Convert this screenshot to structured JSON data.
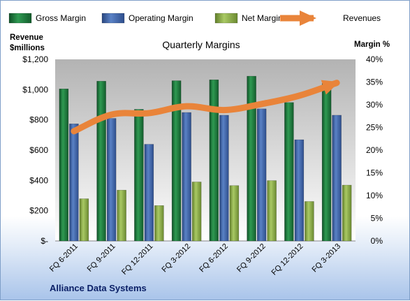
{
  "chart_data": {
    "type": "bar",
    "title": "Quarterly Margins",
    "footer": "Alliance Data Systems",
    "left_axis_title": [
      "Revenue",
      "$millions"
    ],
    "right_axis_title": "Margin %",
    "left_ticks": [
      "$-",
      "$200",
      "$400",
      "$600",
      "$800",
      "$1,000",
      "$1,200"
    ],
    "right_ticks": [
      "0%",
      "5%",
      "10%",
      "15%",
      "20%",
      "25%",
      "30%",
      "35%",
      "40%"
    ],
    "ylim_left": [
      0,
      1200
    ],
    "ylim_right": [
      0,
      40
    ],
    "legend_position": "top",
    "grid": false,
    "categories": [
      "FQ 6-2011",
      "FQ 9-2011",
      "FQ 12-2011",
      "FQ 3-2012",
      "FQ 6-2012",
      "FQ 9-2012",
      "FQ 12-2012",
      "FQ 3-2013"
    ],
    "series": [
      {
        "name": "Gross Margin",
        "axis": "right",
        "color": "#1f7a3d",
        "values": [
          33.5,
          35.2,
          29.0,
          35.3,
          35.5,
          36.3,
          30.5,
          34.7
        ]
      },
      {
        "name": "Operating Margin",
        "axis": "right",
        "color": "#3f64a8",
        "values": [
          25.8,
          27.0,
          21.3,
          28.3,
          27.7,
          29.1,
          22.3,
          27.7
        ]
      },
      {
        "name": "Net Margin",
        "axis": "right",
        "color": "#8fb04a",
        "values": [
          9.3,
          11.2,
          7.8,
          13.0,
          12.2,
          13.3,
          8.7,
          12.3
        ]
      },
      {
        "name": "Revenues",
        "axis": "left",
        "type": "line",
        "color": "#e9843a",
        "values": [
          725,
          835,
          845,
          890,
          865,
          905,
          960,
          1045
        ]
      }
    ]
  }
}
